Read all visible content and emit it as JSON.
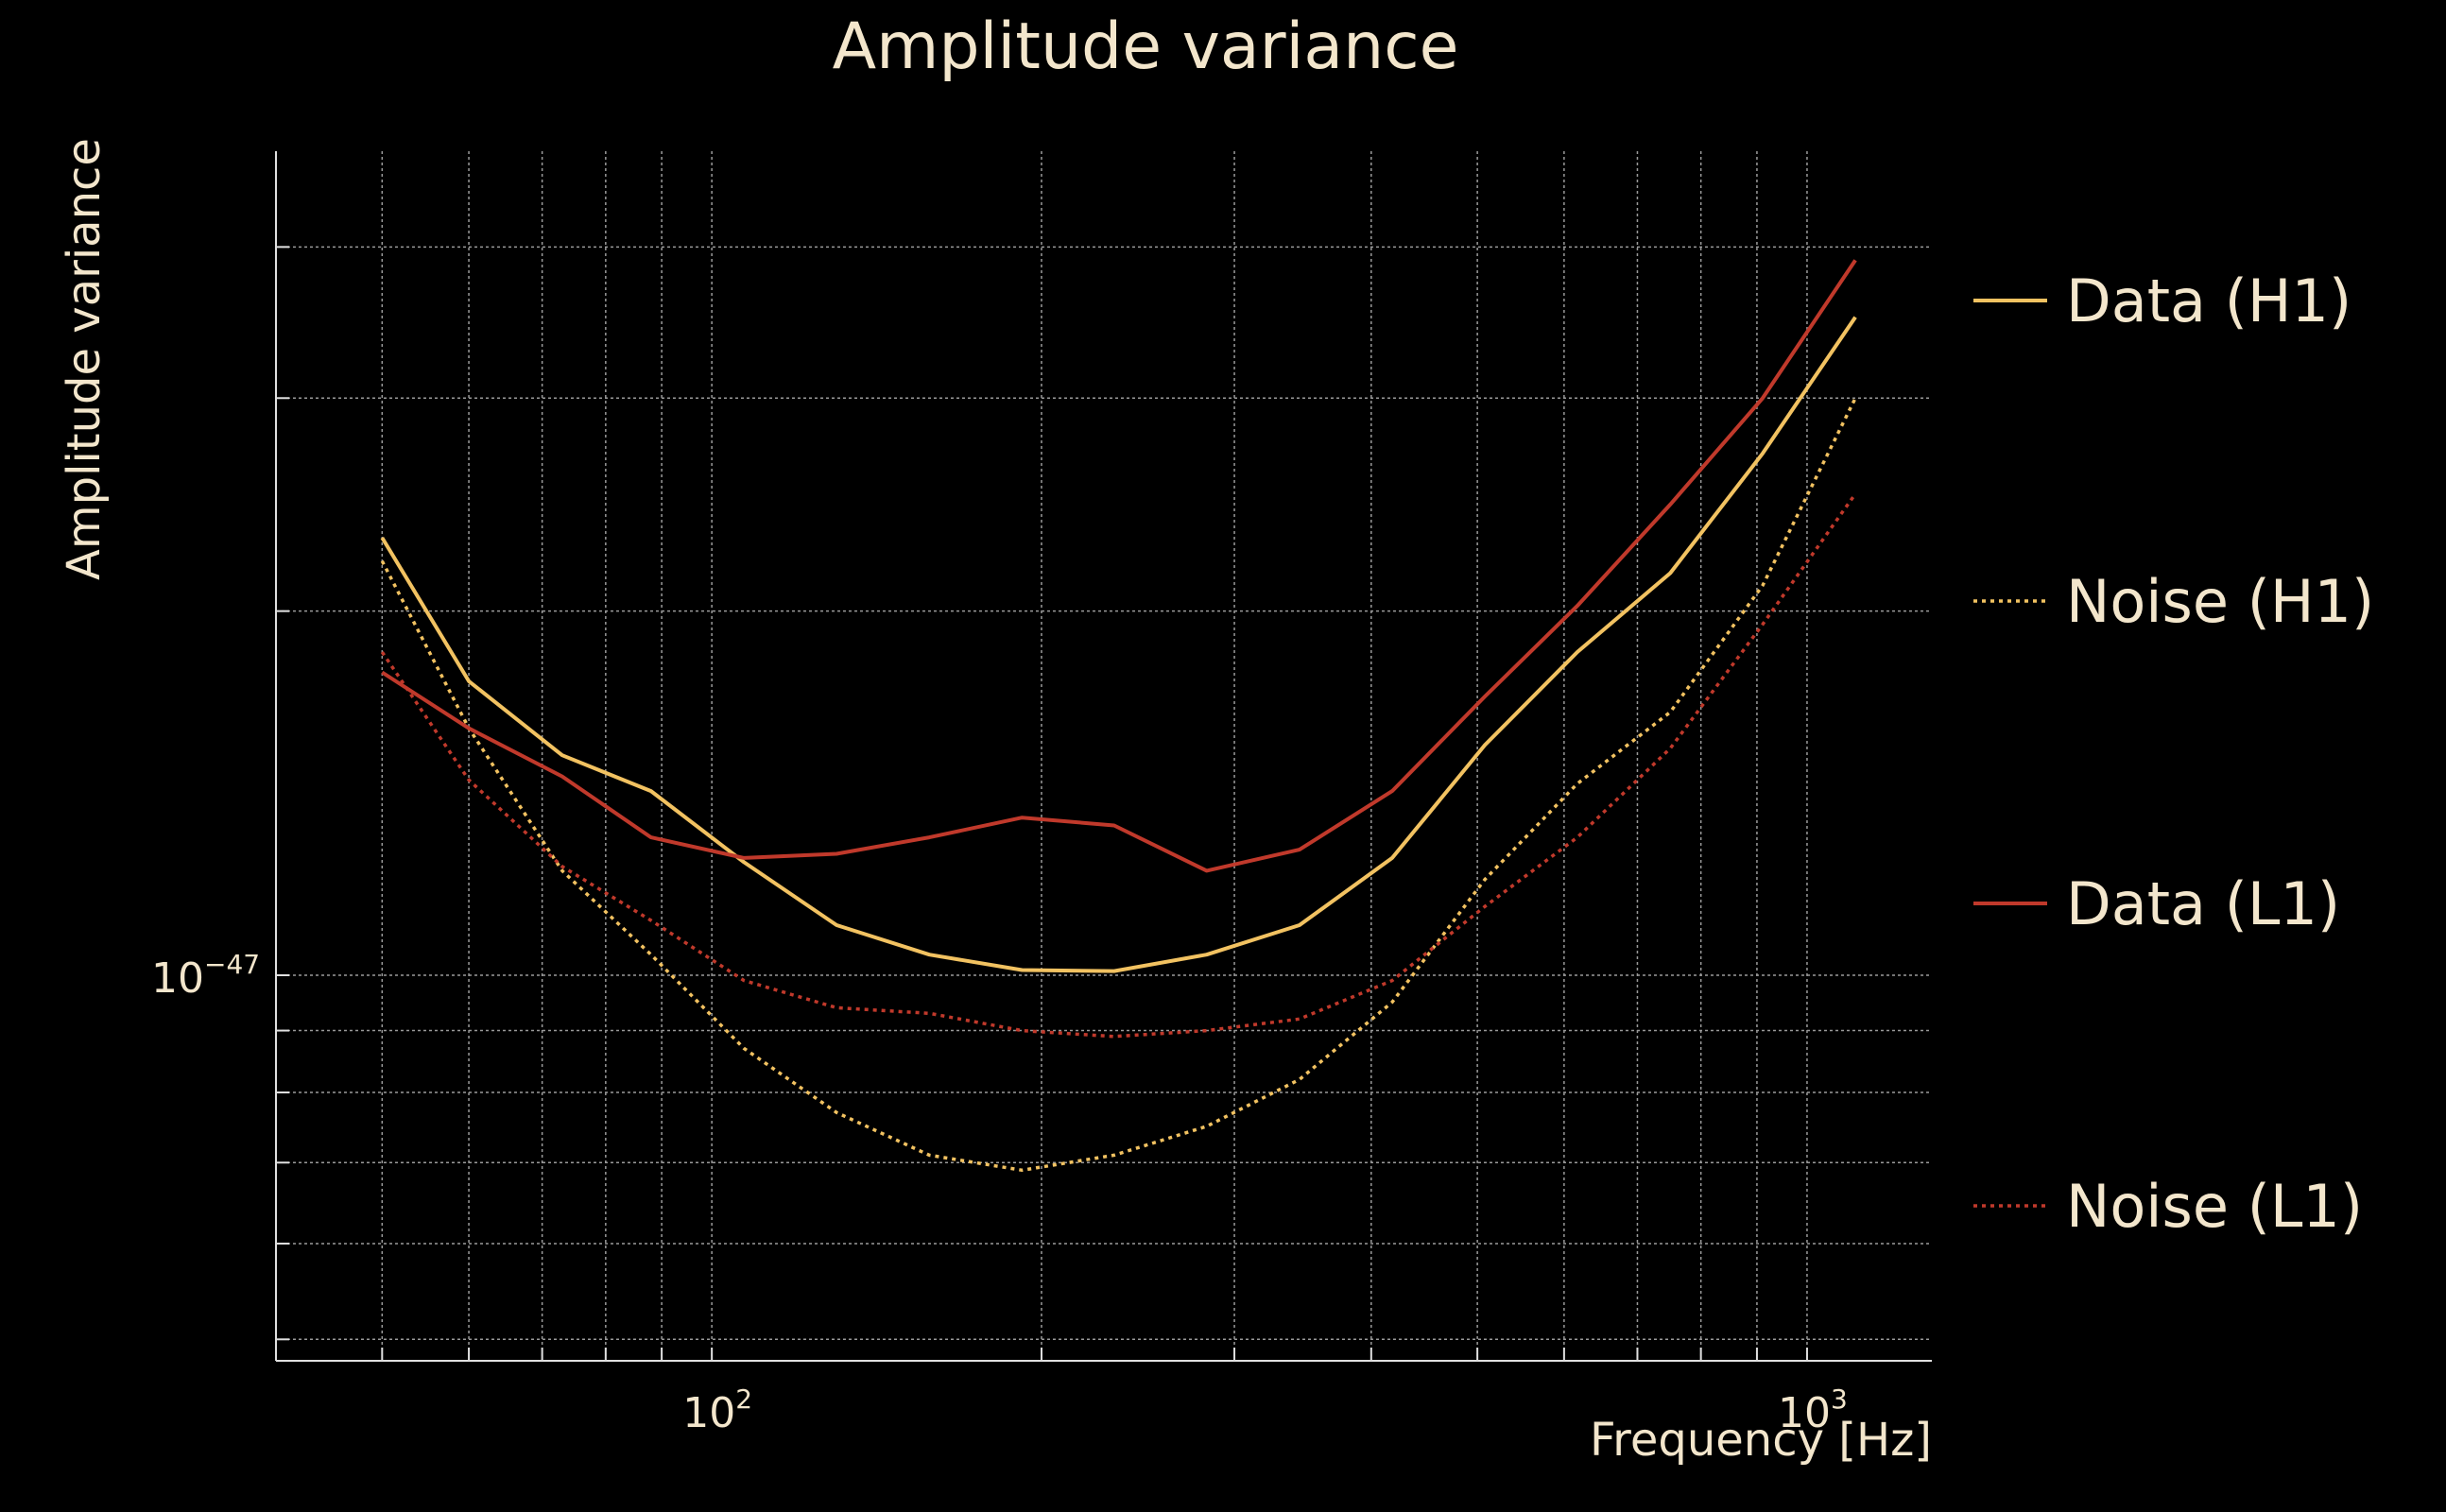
{
  "chart_data": {
    "type": "line",
    "title": "Amplitude variance",
    "xlabel": "Frequency [Hz]",
    "ylabel": "Amplitude variance",
    "xscale": "log",
    "yscale": "log",
    "xlim": [
      40,
      1300
    ],
    "ylim": [
      4.8e-48,
      4.8e-47
    ],
    "x_ticks": [
      {
        "base": "10",
        "exp": "2",
        "value": 100
      },
      {
        "base": "10",
        "exp": "3",
        "value": 1000
      }
    ],
    "y_ticks": [
      {
        "base": "10",
        "exp": "−47",
        "value": 1e-47
      }
    ],
    "grid": true,
    "legend_position": "right",
    "x": [
      50,
      60,
      73,
      88,
      107,
      130,
      158,
      192,
      233,
      283,
      344,
      418,
      508,
      617,
      750,
      911,
      1107
    ],
    "series": [
      {
        "name": "Data (H1)",
        "color": "#f2c261",
        "style": "solid",
        "values": [
          2.3e-47,
          1.75e-47,
          1.52e-47,
          1.42e-47,
          1.24e-47,
          1.1e-47,
          1.04e-47,
          1.01e-47,
          1.008e-47,
          1.04e-47,
          1.1e-47,
          1.25e-47,
          1.55e-47,
          1.85e-47,
          2.15e-47,
          2.7e-47,
          3.5e-47
        ]
      },
      {
        "name": "Noise (H1)",
        "color": "#f2c261",
        "style": "dotted",
        "values": [
          2.2e-47,
          1.6e-47,
          1.22e-47,
          1.04e-47,
          8.7e-48,
          7.7e-48,
          7.1e-48,
          6.9e-48,
          7.1e-48,
          7.5e-48,
          8.2e-48,
          9.5e-48,
          1.2e-47,
          1.44e-47,
          1.65e-47,
          2.1e-47,
          3e-47
        ]
      },
      {
        "name": "Data (L1)",
        "color": "#c0392b",
        "style": "solid",
        "values": [
          1.78e-47,
          1.6e-47,
          1.46e-47,
          1.3e-47,
          1.25e-47,
          1.26e-47,
          1.3e-47,
          1.35e-47,
          1.33e-47,
          1.22e-47,
          1.27e-47,
          1.42e-47,
          1.7e-47,
          2.02e-47,
          2.45e-47,
          3e-47,
          3.9e-47
        ]
      },
      {
        "name": "Noise (L1)",
        "color": "#c0392b",
        "style": "dotted",
        "values": [
          1.85e-47,
          1.45e-47,
          1.23e-47,
          1.11e-47,
          9.9e-48,
          9.4e-48,
          9.3e-48,
          9e-48,
          8.9e-48,
          9e-48,
          9.2e-48,
          9.9e-48,
          1.14e-47,
          1.3e-47,
          1.54e-47,
          1.95e-47,
          2.5e-47
        ]
      }
    ]
  }
}
